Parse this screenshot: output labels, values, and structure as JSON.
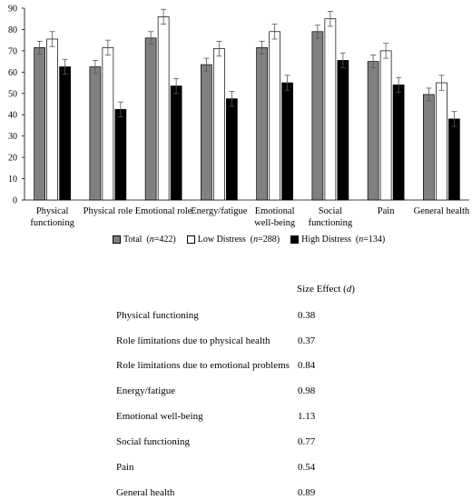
{
  "chart_data": {
    "type": "bar",
    "categories": [
      "Physical functioning",
      "Physical role",
      "Emotional role",
      "Energy/fatigue",
      "Emotional well-being",
      "Social functioning",
      "Pain",
      "General health"
    ],
    "category_lines": [
      [
        "Physical",
        "functioning"
      ],
      [
        "Physical role"
      ],
      [
        "Emotional role"
      ],
      [
        "Energy/fatigue"
      ],
      [
        "Emotional",
        "well-being"
      ],
      [
        "Social",
        "functioning"
      ],
      [
        "Pain"
      ],
      [
        "General health"
      ]
    ],
    "series": [
      {
        "name": "Total",
        "n_label": "(n=422)",
        "values": [
          71.5,
          62.5,
          76,
          63.5,
          71.5,
          79,
          65,
          49.5
        ],
        "errors": [
          3,
          3,
          3,
          3,
          3,
          3,
          3,
          3
        ],
        "color": "#808080"
      },
      {
        "name": "Low Distress",
        "n_label": "(n=288)",
        "values": [
          75.5,
          71.5,
          86,
          71,
          79,
          85,
          70,
          55
        ],
        "errors": [
          3.5,
          3.5,
          3.5,
          3.5,
          3.5,
          3.5,
          3.5,
          3.5
        ],
        "color": "#ffffff"
      },
      {
        "name": "High Distress",
        "n_label": "(n=134)",
        "values": [
          62.5,
          42.5,
          53.5,
          47.5,
          55,
          65.5,
          54,
          38
        ],
        "errors": [
          3.5,
          3.5,
          3.5,
          3.5,
          3.5,
          3.5,
          3.5,
          3.5
        ],
        "color": "#000000"
      }
    ],
    "yticks": [
      0,
      10,
      20,
      30,
      40,
      50,
      60,
      70,
      80,
      90
    ],
    "ylim": [
      0,
      90
    ],
    "grid": false,
    "legend": "bottom"
  },
  "table": {
    "header": "Size Effect (d)",
    "rows": [
      {
        "label": "Physical functioning",
        "value": "0.38"
      },
      {
        "label": "Role limitations due to physical health",
        "value": "0.37"
      },
      {
        "label": "Role limitations due to emotional problems",
        "value": "0.84"
      },
      {
        "label": "Energy/fatigue",
        "value": "0.98"
      },
      {
        "label": "Emotional well-being",
        "value": "1.13"
      },
      {
        "label": "Social functioning",
        "value": "0.77"
      },
      {
        "label": "Pain",
        "value": "0.54"
      },
      {
        "label": "General health",
        "value": "0.89"
      }
    ]
  }
}
